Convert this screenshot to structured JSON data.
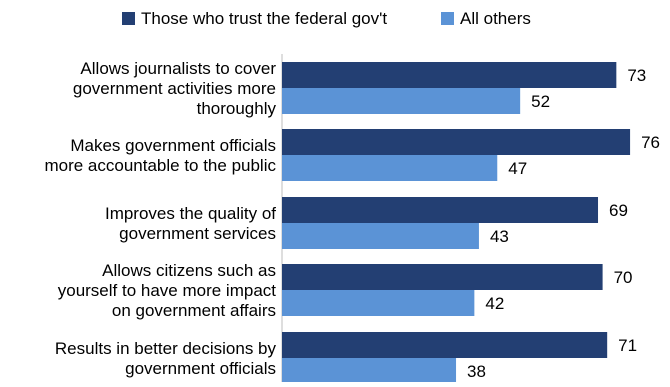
{
  "chart_data": {
    "type": "bar",
    "orientation": "horizontal",
    "categories": [
      [
        "Allows journalists to cover",
        "government activities more",
        "thoroughly"
      ],
      [
        "Makes government officials",
        "more accountable to the public"
      ],
      [
        "Improves the quality of",
        "government services"
      ],
      [
        "Allows citizens such as",
        "yourself to have more impact",
        "on government affairs"
      ],
      [
        "Results in better decisions by",
        "government officials"
      ]
    ],
    "series": [
      {
        "name": "Those who trust the federal gov't",
        "color": "#233f73",
        "values": [
          73,
          76,
          69,
          70,
          71
        ]
      },
      {
        "name": "All others",
        "color": "#5b93d6",
        "values": [
          52,
          47,
          43,
          42,
          38
        ]
      }
    ],
    "legend": "top",
    "data_labels": true,
    "grid": false
  }
}
